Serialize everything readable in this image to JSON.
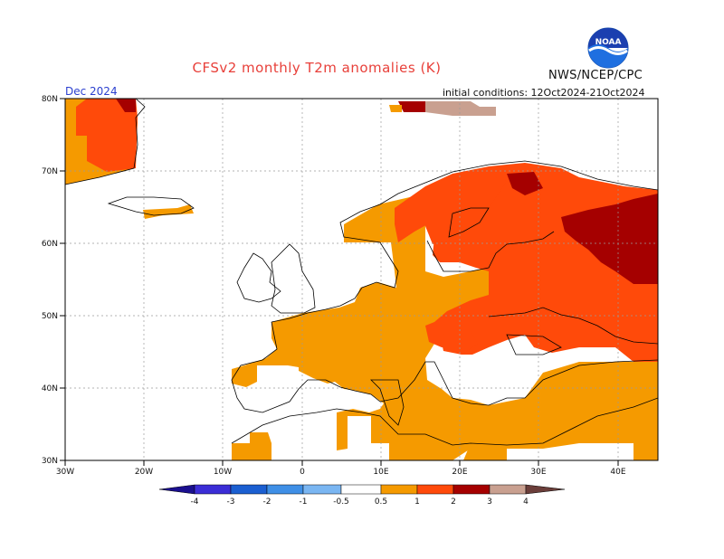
{
  "header": {
    "title": "CFSv2 monthly T2m anomalies (K)",
    "org": "NWS/NCEP/CPC",
    "logo_text": "NOAA",
    "month": "Dec 2024",
    "init": "initial conditions: 12Oct2024-21Oct2024"
  },
  "map": {
    "lon_range": [
      -30,
      45
    ],
    "lat_range": [
      30,
      80
    ],
    "lat_ticks": [
      "80N",
      "70N",
      "60N",
      "50N",
      "40N",
      "30N"
    ],
    "lon_ticks": [
      "30W",
      "20W",
      "10W",
      "0",
      "10E",
      "20E",
      "30E",
      "40E"
    ]
  },
  "colorbar": {
    "labels": [
      "-4",
      "-3",
      "-2",
      "-1",
      "-0.5",
      "0.5",
      "1",
      "2",
      "3",
      "4"
    ],
    "colors": {
      "below_-4": "#1a0f8f",
      "-4_-3": "#3b2dd6",
      "-3_-2": "#1b5fd1",
      "-2_-1": "#3f8fe6",
      "-1_-0.5": "#7ab6f2",
      "neutral": "#ffffff",
      "0.5_1": "#f59a00",
      "1_2": "#ff4a0a",
      "2_3": "#a50000",
      "3_4": "#c9a090",
      "above_4": "#6b3e3a"
    }
  }
}
